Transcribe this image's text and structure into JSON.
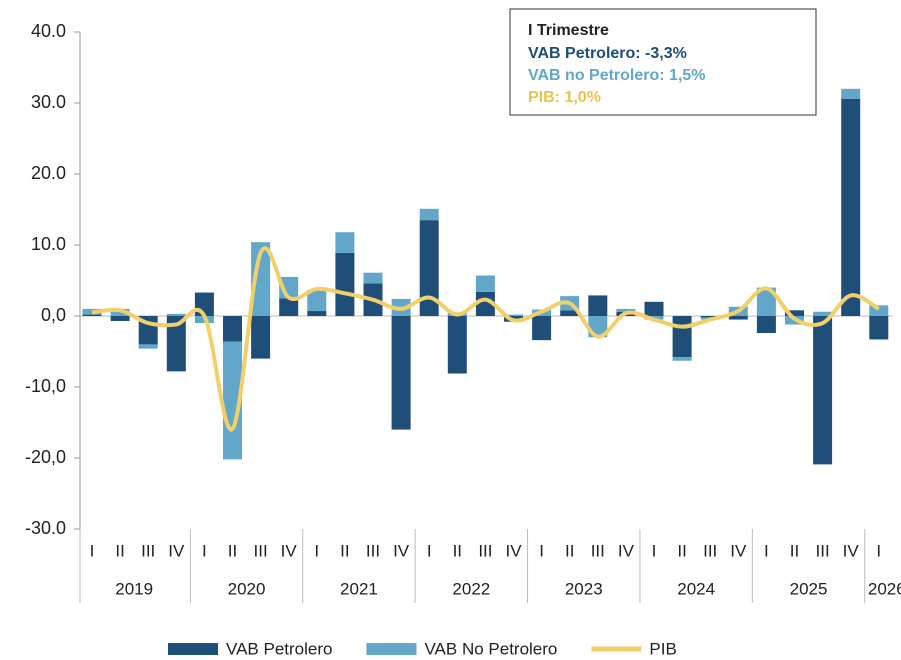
{
  "chart_data": {
    "type": "stacked_bar_line",
    "categories": [
      "I",
      "II",
      "III",
      "IV",
      "I",
      "II",
      "III",
      "IV",
      "I",
      "II",
      "III",
      "IV",
      "I",
      "II",
      "III",
      "IV",
      "I",
      "II",
      "III",
      "IV",
      "I",
      "II",
      "III",
      "IV",
      "I",
      "II",
      "III",
      "IV",
      "I"
    ],
    "groups": [
      "2019",
      "2020",
      "2021",
      "2022",
      "2023",
      "2024",
      "2025",
      "2026"
    ],
    "series": [
      {
        "name": "VAB Petrolero",
        "color": "#1f4e79",
        "kind": "bar",
        "values": [
          0.2,
          -0.7,
          -4.0,
          -7.8,
          3.3,
          -3.6,
          -6.0,
          2.5,
          0.7,
          8.9,
          4.6,
          -16.0,
          13.5,
          -8.1,
          3.4,
          -0.8,
          -3.4,
          0.8,
          2.9,
          0.6,
          2.0,
          -5.8,
          -0.2,
          -0.5,
          -2.4,
          0.8,
          -20.9,
          30.6,
          -3.3
        ]
      },
      {
        "name": "VAB No Petrolero",
        "color": "#62a7c9",
        "kind": "bar",
        "values": [
          0.8,
          1.0,
          -0.6,
          0.3,
          -1.0,
          -16.6,
          10.4,
          3.0,
          3.0,
          2.9,
          1.5,
          2.4,
          1.6,
          0.5,
          2.3,
          0.2,
          0.9,
          2.0,
          -3.0,
          0.4,
          -0.5,
          -0.5,
          -0.3,
          1.3,
          4.0,
          -1.2,
          0.6,
          1.4,
          1.5
        ]
      },
      {
        "name": "PIB",
        "color": "#f1cf69",
        "kind": "line",
        "values": [
          0.5,
          0.8,
          -1.0,
          -1.2,
          0.0,
          -15.9,
          8.9,
          2.6,
          3.8,
          3.2,
          2.3,
          1.0,
          2.6,
          0.2,
          2.3,
          -0.6,
          0.6,
          1.8,
          -2.9,
          0.4,
          -0.5,
          -1.5,
          -0.5,
          0.7,
          3.9,
          -0.4,
          -1.0,
          2.9,
          1.0
        ]
      }
    ],
    "ylim": [
      -30,
      40
    ],
    "yticks": [
      {
        "value": -30,
        "label": "-30.0"
      },
      {
        "value": -20,
        "label": "-20,0"
      },
      {
        "value": -10,
        "label": "-10,0"
      },
      {
        "value": 0,
        "label": "0,0"
      },
      {
        "value": 10,
        "label": "10.0"
      },
      {
        "value": 20,
        "label": "20.0"
      },
      {
        "value": 30,
        "label": "30.0"
      },
      {
        "value": 40,
        "label": "40.0"
      }
    ],
    "annotation": {
      "title": "I Trimestre",
      "lines": [
        {
          "text": "VAB Petrolero:  -3,3%",
          "color": "#1f4e79"
        },
        {
          "text": "VAB no Petrolero: 1,5%",
          "color": "#62a7c9"
        },
        {
          "text": "PIB: 1,0%",
          "color": "#e8c44f"
        }
      ]
    }
  }
}
